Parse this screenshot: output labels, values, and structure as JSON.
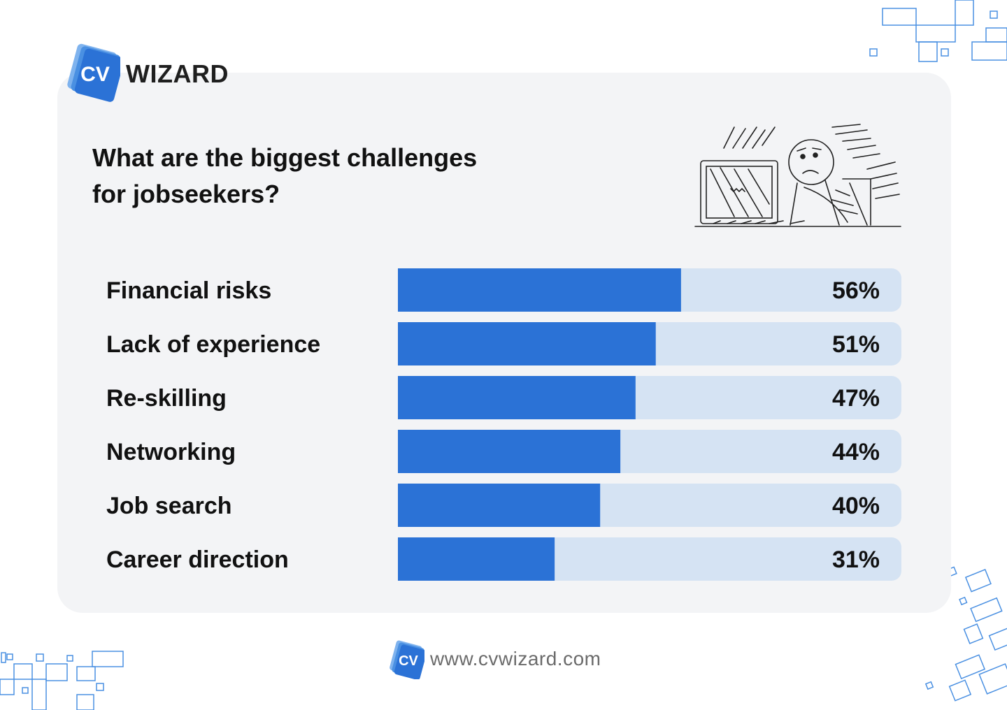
{
  "brand": {
    "logo_badge": "CV",
    "logo_word": "WIZARD",
    "accent_color": "#2b72d6",
    "track_color": "#d5e3f3",
    "card_color": "#f3f4f6"
  },
  "title_line1": "What are the biggest challenges",
  "title_line2": "for jobseekers?",
  "illustration_icon": "stressed-person-at-computer-sketch",
  "chart_data": {
    "type": "bar",
    "orientation": "horizontal",
    "categories": [
      "Financial risks",
      "Lack of experience",
      "Re-skilling",
      "Networking",
      "Job search",
      "Career direction"
    ],
    "values": [
      56,
      51,
      47,
      44,
      40,
      31
    ],
    "value_labels": [
      "56%",
      "51%",
      "47%",
      "44%",
      "40%",
      "31%"
    ],
    "xlim": [
      0,
      100
    ],
    "grid": false,
    "legend": "none"
  },
  "footer": {
    "badge": "CV",
    "url": "www.cvwizard.com"
  }
}
